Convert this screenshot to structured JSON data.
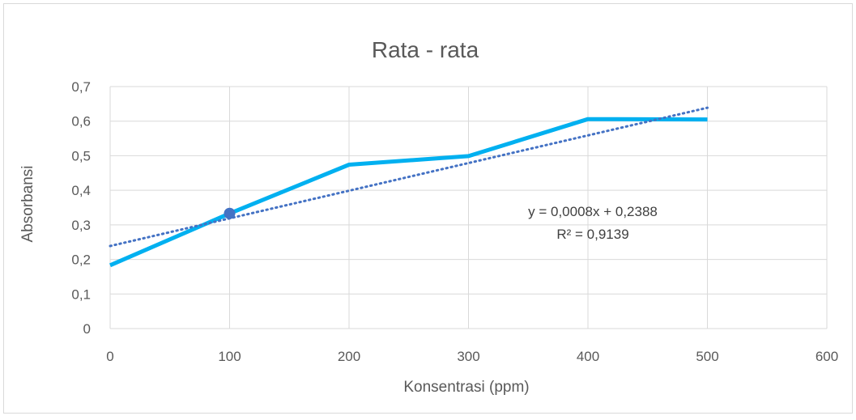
{
  "chart_data": {
    "type": "line",
    "title": "Rata - rata",
    "xlabel": "Konsentrasi (ppm)",
    "ylabel": "Absorbansi",
    "xlim": [
      0,
      600
    ],
    "ylim": [
      0,
      0.7
    ],
    "x_ticks": [
      "0",
      "100",
      "200",
      "300",
      "400",
      "500",
      "600"
    ],
    "y_ticks": [
      "0",
      "0,1",
      "0,2",
      "0,3",
      "0,4",
      "0,5",
      "0,6",
      "0,7"
    ],
    "grid": true,
    "series": [
      {
        "x": [
          0,
          100,
          200,
          300,
          400,
          500
        ],
        "y": [
          0.183,
          0.333,
          0.474,
          0.499,
          0.606,
          0.605
        ],
        "color": "#00b0f0",
        "highlight_index": 1,
        "highlight_color": "#4472c4"
      }
    ],
    "trendline": {
      "slope": 0.0008,
      "intercept": 0.2388,
      "x_range": [
        0,
        500
      ],
      "color": "#4472c4",
      "style": "dotted",
      "equation": "y = 0,0008x + 0,2388",
      "r_squared": "R² = 0,9139"
    }
  }
}
